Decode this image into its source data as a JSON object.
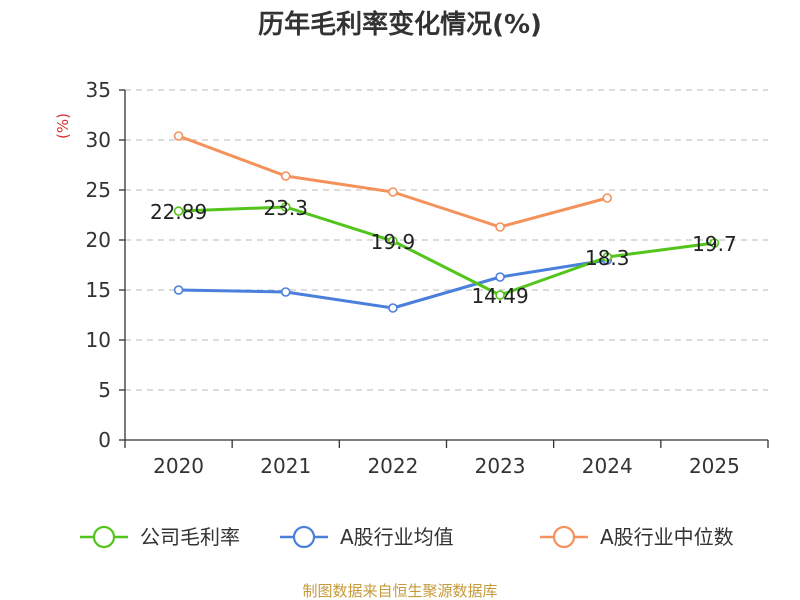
{
  "chart_data": {
    "type": "line",
    "title": "历年毛利率变化情况(%)",
    "ylabel": "(%)",
    "xlabel": "",
    "categories": [
      "2020",
      "2021",
      "2022",
      "2023",
      "2024",
      "2025"
    ],
    "ylim": [
      0,
      35
    ],
    "yticks": [
      0,
      5,
      10,
      15,
      20,
      25,
      30,
      35
    ],
    "grid": true,
    "legend_position": "bottom",
    "series": [
      {
        "name": "公司毛利率",
        "color": "#52c41a",
        "values": [
          22.89,
          23.3,
          19.9,
          14.49,
          18.3,
          19.7
        ],
        "labels": [
          "22.89",
          "23.3",
          "19.9",
          "14.49",
          "18.3",
          "19.7"
        ]
      },
      {
        "name": "A股行业均值",
        "color": "#4a7fdb",
        "values": [
          15.0,
          14.8,
          13.2,
          16.3,
          18.0,
          null
        ]
      },
      {
        "name": "A股行业中位数",
        "color": "#f5915a",
        "values": [
          30.4,
          26.4,
          24.8,
          21.3,
          24.2,
          null
        ]
      }
    ]
  },
  "source": "制图数据来自恒生聚源数据库"
}
